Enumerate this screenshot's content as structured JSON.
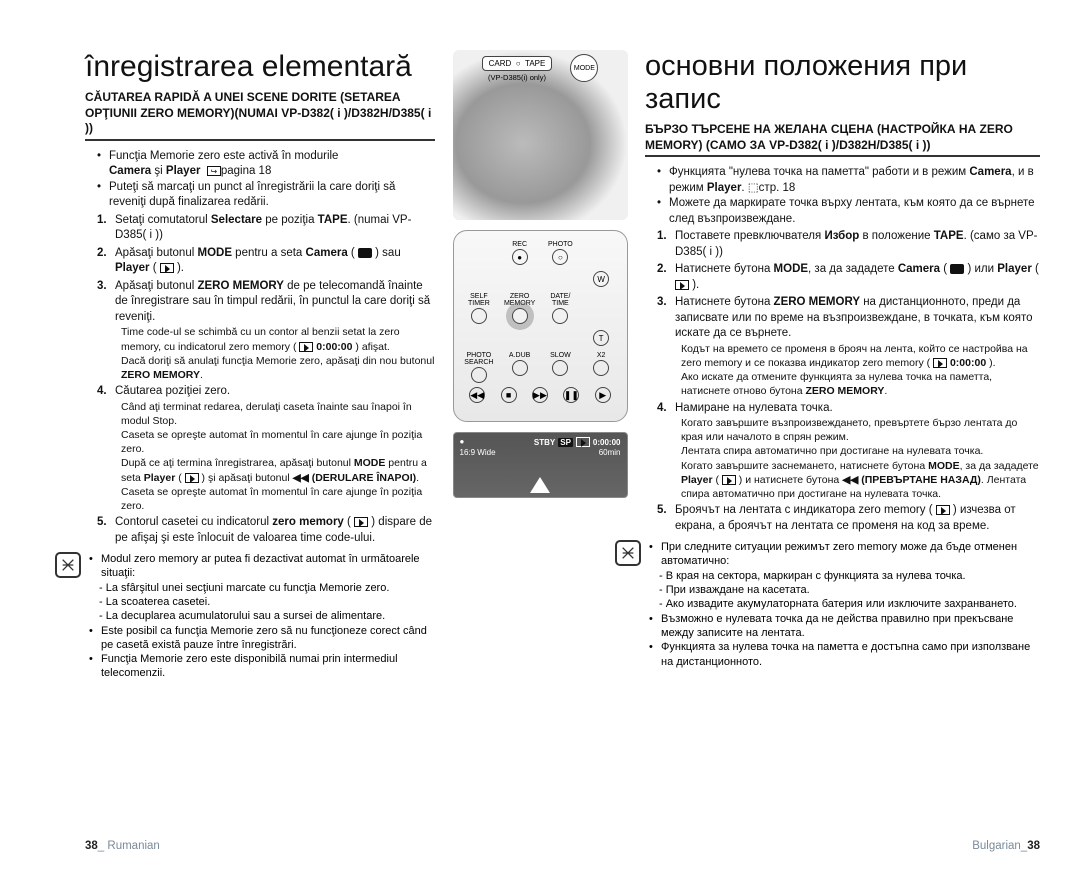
{
  "left": {
    "title": "înregistrarea elementară",
    "section": "CĂUTAREA RAPIDĂ A UNEI SCENE DORITE (SETAREA OPŢIUNII ZERO MEMORY)(NUMAI VP-D382( i )/D382H/D385( i ))",
    "intro1": "Funcţia Memorie zero este activă în modurile",
    "intro1b": "Camera şi Player    pagina 18",
    "intro2": "Puteţi să marcaţi un punct al înregistrării la care doriţi să reveniţi după finalizarea redării.",
    "steps": [
      {
        "n": "1.",
        "t": "Setaţi comutatorul <b>Selectare</b> pe poziţia <b>TAPE</b>. (numai VP-D385( i ))"
      },
      {
        "n": "2.",
        "t": "Apăsaţi butonul <b>MODE</b> pentru a seta <b>Camera</b> ( <span class='icon-cam'></span> ) sau <b>Player</b> ( <span class='icon-play'></span> )."
      },
      {
        "n": "3.",
        "t": "Apăsaţi butonul <b>ZERO MEMORY</b> de pe telecomandă înainte de înregistrare sau în timpul redării, în punctul la care doriţi să reveniţi."
      },
      {
        "n": "4.",
        "t": "Căutarea poziţiei zero."
      },
      {
        "n": "5.",
        "t": "Contorul casetei cu indicatorul <b>zero memory</b> ( <span class='icon-play'></span> ) dispare de pe afişaj şi este înlocuit de valoarea time code-ului."
      }
    ],
    "step3_sub": [
      "Time code-ul se schimbă cu un contor al benzii setat la zero memory, cu indicatorul zero memory ( <span class='icon-play'></span> <b>0:00:00</b> ) afişat.",
      "Dacă doriţi să anulaţi funcţia Memorie zero, apăsaţi din nou butonul <b>ZERO MEMORY</b>."
    ],
    "step4_sub": [
      "Când aţi terminat redarea, derulaţi caseta înainte sau înapoi în modul Stop.",
      "Caseta se opreşte automat în momentul în care ajunge în poziţia zero.",
      "După ce aţi termina înregistrarea, apăsaţi butonul <b>MODE</b> pentru a seta <b>Player</b> ( <span class='icon-play'></span> ) şi apăsaţi butonul <b>◀◀ (DERULARE ÎNAPOI)</b>. Caseta se opreşte automat în momentul în care ajunge în poziţia zero."
    ],
    "note_intro": "Modul zero memory ar putea fi dezactivat automat în următoarele situaţii:",
    "note_items": [
      "-  La sfârşitul unei secţiuni marcate cu funcţia Memorie zero.",
      "-  La scoaterea casetei.",
      "-  La decuplarea acumulatorului sau a sursei de alimentare."
    ],
    "note_extra": [
      "Este posibil ca funcţia Memorie zero să nu funcţioneze corect când pe casetă există pauze între înregistrări.",
      "Funcţia Memorie zero este disponibilă numai prin intermediul telecomenzii."
    ]
  },
  "right": {
    "title": "основни положения при запис",
    "section": "БЪРЗО ТЪРСЕНЕ НА ЖЕЛАНА СЦЕНА (НАСТРОЙКА НА ZERO MEMORY) (САМО ЗА VP-D382( i )/D382H/D385( i ))",
    "intro1": "Функцията \"нулева точка на паметта\" работи и в режим <b>Camera</b>, и в режим <b>Player</b>. ⬚стр. 18",
    "intro2": "Можете да маркирате точка върху лентата, към която да се върнете след възпроизвеждане.",
    "steps": [
      {
        "n": "1.",
        "t": "Поставете превключвателя <b>Избор</b> в положение <b>TAPE</b>. (само за VP-D385( i ))"
      },
      {
        "n": "2.",
        "t": "Натиснете бутона <b>MODE</b>, за да зададете <b>Camera</b> ( <span class='icon-cam'></span> ) или <b>Player</b> ( <span class='icon-play'></span> )."
      },
      {
        "n": "3.",
        "t": "Натиснете бутона <b>ZERO MEMORY</b> на дистанционното, преди да записвате или по време на възпроизвеждане, в точката, към която искате да се върнете."
      },
      {
        "n": "4.",
        "t": "Намиране на нулевата точка."
      },
      {
        "n": "5.",
        "t": "Броячът на лентата с индикатора zero memory ( <span class='icon-play'></span> ) изчезва от екрана, а броячът на лентата се променя на код за време."
      }
    ],
    "step3_sub": [
      "Кодът на времето се променя в брояч на лента, който се настройва на zero memory и се показва индикатор zero memory ( <span class='icon-play'></span> <b>0:00:00</b> ).",
      "Ако искате да отмените функцията за нулева точка на паметта, натиснете отново бутона <b>ZERO MEMORY</b>."
    ],
    "step4_sub": [
      "Когато завършите възпроизвеждането, превъртете бързо лентата до края или началото в спрян режим.",
      "Лентата спира автоматично при достигане на нулевата точка.",
      "Когато завършите заснемането, натиснете бутона <b>MODE</b>, за да зададете <b>Player</b> ( <span class='icon-play'></span> ) и натиснете бутона <b>◀◀ (ПРЕВЪРТАНЕ НАЗАД)</b>. Лентата спира автоматично при достигане на нулевата точка."
    ],
    "note_intro": "При следните ситуации режимът zero memory може да бъде отменен автоматично:",
    "note_items": [
      "-  В края на сектора, маркиран с функцията за нулева точка.",
      "-  При изваждане на касетата.",
      "-  Ако извадите акумулаторната батерия или изключите захранването."
    ],
    "note_extra": [
      "Възможно е нулевата точка да не действа правилно при прекъсване между записите на лентата.",
      "Функцията за нулева точка на паметта е достъпна само при използване на дистанционното."
    ]
  },
  "center": {
    "top_labels": {
      "card": "CARD",
      "tape": "TAPE",
      "mode": "MODE",
      "note": "(VP-D385(i) only)"
    },
    "remote_labels": {
      "rec": "REC",
      "photo": "PHOTO",
      "self": "SELF\nTIMER",
      "zero": "ZERO\nMEMORY",
      "date": "DATE/\nTIME",
      "photosearch": "PHOTO\nSEARCH",
      "adub": "A.DUB",
      "slow": "SLOW",
      "x2": "X2",
      "w": "W",
      "t": "T"
    },
    "osd": {
      "stby": "STBY",
      "sp": "SP",
      "time": "0:00:00",
      "wide": "16:9 Wide",
      "min": "60min"
    }
  },
  "footer": {
    "left_num": "38",
    "left_label": "Rumanian",
    "right_label": "Bulgarian",
    "right_num": "38"
  }
}
